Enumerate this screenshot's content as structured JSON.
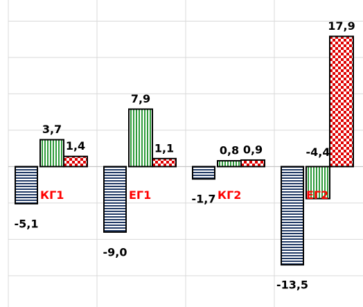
{
  "chart_data": {
    "type": "bar",
    "categories": [
      "КГ1",
      "ЕГ1",
      "КГ2",
      "ЕГ2"
    ],
    "series": [
      {
        "color": "#1f3864",
        "values": [
          -5.1,
          -9.0,
          -1.7,
          -13.5
        ],
        "value_labels": [
          "-5,1",
          "-9,0",
          "-1,7",
          "-13,5"
        ]
      },
      {
        "color": "#2e9b3a",
        "values": [
          3.7,
          7.9,
          0.8,
          -4.4
        ],
        "value_labels": [
          "3,7",
          "7,9",
          "0,8",
          "-4,4"
        ]
      },
      {
        "color": "#e00000",
        "values": [
          1.4,
          1.1,
          0.9,
          17.9
        ],
        "value_labels": [
          "1,4",
          "1,1",
          "0,9",
          "17,9"
        ]
      }
    ],
    "category_label_color": "#ff0000",
    "ylim": [
      -19.3,
      22.9
    ],
    "yticks": [
      -15,
      -10,
      -5,
      0,
      5,
      10,
      15,
      20
    ],
    "grid": true
  }
}
